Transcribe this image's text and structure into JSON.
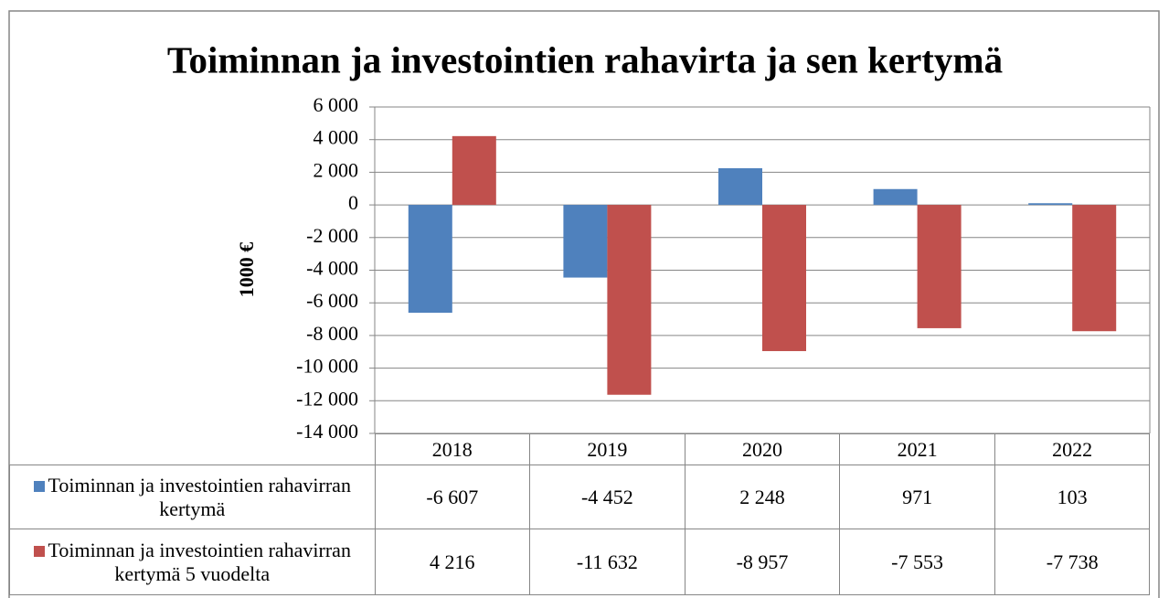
{
  "chart_data": {
    "type": "bar",
    "title": "Toiminnan ja investointien rahavirta ja sen kertymä",
    "y_label": "1000 €",
    "categories": [
      "2018",
      "2019",
      "2020",
      "2021",
      "2022"
    ],
    "series": [
      {
        "name": "Toiminnan ja investointien rahavirran kertymä",
        "color": "#4f81bd",
        "values": [
          -6607,
          -4452,
          2248,
          971,
          103
        ],
        "value_labels": [
          "-6 607",
          "-4 452",
          "2 248",
          "971",
          "103"
        ]
      },
      {
        "name": "Toiminnan ja investointien rahavirran kertymä 5 vuodelta",
        "color": "#c0504d",
        "values": [
          4216,
          -11632,
          -8957,
          -7553,
          -7738
        ],
        "value_labels": [
          "4 216",
          "-11 632",
          "-8 957",
          "-7 553",
          "-7 738"
        ]
      }
    ],
    "ylim": [
      -14000,
      6000
    ],
    "yticks": [
      {
        "value": 6000,
        "label": "6 000"
      },
      {
        "value": 4000,
        "label": "4 000"
      },
      {
        "value": 2000,
        "label": "2 000"
      },
      0,
      {
        "value": -2000,
        "label": "-2 000"
      },
      {
        "value": -4000,
        "label": "-4 000"
      },
      {
        "value": -6000,
        "label": "-6 000"
      },
      {
        "value": -8000,
        "label": "-8 000"
      },
      {
        "value": -10000,
        "label": "-10 000"
      },
      {
        "value": -12000,
        "label": "-12 000"
      },
      {
        "value": -14000,
        "label": "-14 000"
      }
    ],
    "grid": true
  }
}
